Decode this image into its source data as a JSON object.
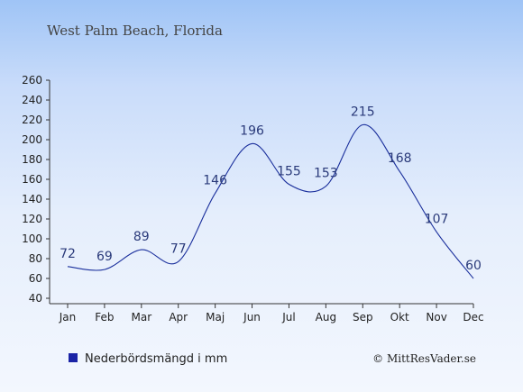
{
  "chart_data": {
    "type": "line",
    "title": "West Palm Beach, Florida",
    "categories": [
      "Jan",
      "Feb",
      "Mar",
      "Apr",
      "Maj",
      "Jun",
      "Jul",
      "Aug",
      "Sep",
      "Okt",
      "Nov",
      "Dec"
    ],
    "series": [
      {
        "name": "Nederbördsmängd i mm",
        "values": [
          72,
          69,
          89,
          77,
          146,
          196,
          155,
          153,
          215,
          168,
          107,
          60
        ]
      }
    ],
    "ylim": [
      40,
      260
    ],
    "yticks": [
      40,
      60,
      80,
      100,
      120,
      140,
      160,
      180,
      200,
      220,
      240,
      260
    ],
    "grid": false,
    "legend": "bottom-left",
    "line_color": "#1a2f9c",
    "legend_swatch_color": "#1a23a6"
  },
  "credit": "© MittResVader.se"
}
